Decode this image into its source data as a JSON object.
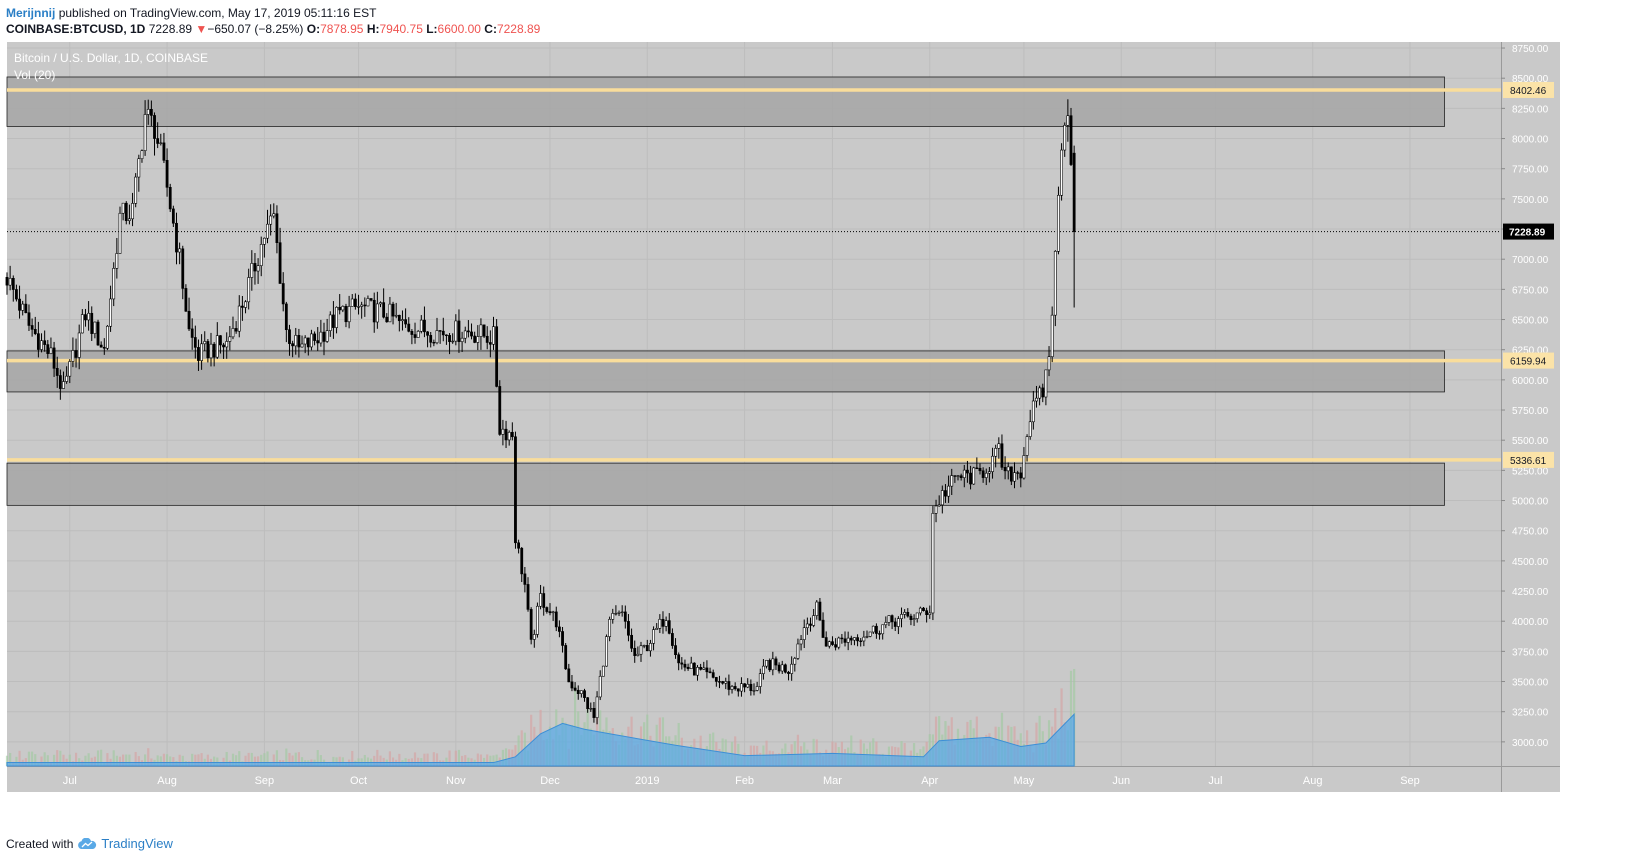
{
  "header": {
    "author": "Merijnnij",
    "published_text": "published on TradingView.com, May 17, 2019 05:11:16 EST",
    "symbol": "COINBASE:BTCUSD, 1D",
    "last": "7228.89",
    "change_arrow": "▼",
    "change": "−650.07 (−8.25%)",
    "o_label": "O:",
    "o_value": "7878.95",
    "h_label": "H:",
    "h_value": "7940.75",
    "l_label": "L:",
    "l_value": "6600.00",
    "c_label": "C:",
    "c_value": "7228.89"
  },
  "chart_legend": {
    "title": "Bitcoin / U.S. Dollar, 1D, COINBASE",
    "volume": "Vol (20)"
  },
  "footer": {
    "created_with": "Created with",
    "brand": "TradingView",
    "logo_icon": "tradingview-cloud-icon"
  },
  "colors": {
    "panel_bg": "#c9c9c9",
    "zone_fill": "#a6a6a6",
    "level_line": "#f9dd9b",
    "candle": "#000000",
    "volume_ma": "#5aa9e6"
  },
  "chart_data": {
    "type": "candlestick",
    "title": "Bitcoin / U.S. Dollar, 1D, COINBASE",
    "y_axis_ticks": [
      8750,
      8500,
      8250,
      8000,
      7750,
      7500,
      7250,
      7000,
      6750,
      6500,
      6250,
      6000,
      5750,
      5500,
      5250,
      5000,
      4750,
      4500,
      4250,
      4000,
      3750,
      3500,
      3250,
      3000
    ],
    "ylim": [
      2800,
      8800
    ],
    "x_axis_ticks": [
      "Jul",
      "Aug",
      "Sep",
      "Oct",
      "Nov",
      "Dec",
      "2019",
      "Feb",
      "Mar",
      "Apr",
      "May",
      "Jun",
      "Jul",
      "Aug",
      "Sep"
    ],
    "x_range": [
      "2018-06-11",
      "2019-09-30"
    ],
    "price_series": [
      [
        "2018-06-11",
        6850
      ],
      [
        "2018-06-18",
        6450
      ],
      [
        "2018-06-25",
        6200
      ],
      [
        "2018-06-29",
        5900
      ],
      [
        "2018-07-06",
        6550
      ],
      [
        "2018-07-12",
        6250
      ],
      [
        "2018-07-17",
        7350
      ],
      [
        "2018-07-21",
        7400
      ],
      [
        "2018-07-25",
        8200
      ],
      [
        "2018-07-28",
        8100
      ],
      [
        "2018-08-01",
        7600
      ],
      [
        "2018-08-05",
        7000
      ],
      [
        "2018-08-08",
        6400
      ],
      [
        "2018-08-11",
        6200
      ],
      [
        "2018-08-14",
        6250
      ],
      [
        "2018-08-20",
        6300
      ],
      [
        "2018-08-26",
        6700
      ],
      [
        "2018-09-01",
        7200
      ],
      [
        "2018-09-04",
        7350
      ],
      [
        "2018-09-08",
        6400
      ],
      [
        "2018-09-12",
        6250
      ],
      [
        "2018-09-18",
        6350
      ],
      [
        "2018-09-25",
        6550
      ],
      [
        "2018-10-01",
        6600
      ],
      [
        "2018-10-10",
        6550
      ],
      [
        "2018-10-15",
        6450
      ],
      [
        "2018-10-25",
        6400
      ],
      [
        "2018-11-05",
        6400
      ],
      [
        "2018-11-13",
        6350
      ],
      [
        "2018-11-15",
        5600
      ],
      [
        "2018-11-19",
        5550
      ],
      [
        "2018-11-20",
        4700
      ],
      [
        "2018-11-23",
        4300
      ],
      [
        "2018-11-25",
        3800
      ],
      [
        "2018-11-28",
        4200
      ],
      [
        "2018-12-03",
        4000
      ],
      [
        "2018-12-07",
        3500
      ],
      [
        "2018-12-11",
        3400
      ],
      [
        "2018-12-15",
        3200
      ],
      [
        "2018-12-20",
        4000
      ],
      [
        "2018-12-24",
        4050
      ],
      [
        "2018-12-28",
        3700
      ],
      [
        "2019-01-01",
        3800
      ],
      [
        "2019-01-07",
        4050
      ],
      [
        "2019-01-11",
        3650
      ],
      [
        "2019-01-20",
        3550
      ],
      [
        "2019-01-28",
        3450
      ],
      [
        "2019-02-05",
        3450
      ],
      [
        "2019-02-08",
        3650
      ],
      [
        "2019-02-15",
        3600
      ],
      [
        "2019-02-20",
        3950
      ],
      [
        "2019-02-24",
        4100
      ],
      [
        "2019-02-27",
        3800
      ],
      [
        "2019-03-05",
        3850
      ],
      [
        "2019-03-12",
        3900
      ],
      [
        "2019-03-20",
        4000
      ],
      [
        "2019-03-28",
        4050
      ],
      [
        "2019-04-01",
        4100
      ],
      [
        "2019-04-02",
        4900
      ],
      [
        "2019-04-05",
        5050
      ],
      [
        "2019-04-10",
        5200
      ],
      [
        "2019-04-16",
        5200
      ],
      [
        "2019-04-20",
        5300
      ],
      [
        "2019-04-23",
        5400
      ],
      [
        "2019-04-25",
        5200
      ],
      [
        "2019-04-30",
        5250
      ],
      [
        "2019-05-03",
        5700
      ],
      [
        "2019-05-07",
        5900
      ],
      [
        "2019-05-09",
        6200
      ],
      [
        "2019-05-11",
        7000
      ],
      [
        "2019-05-13",
        8000
      ],
      [
        "2019-05-14",
        8200
      ],
      [
        "2019-05-15",
        8200
      ],
      [
        "2019-05-16",
        7880
      ],
      [
        "2019-05-17",
        7228.89
      ]
    ],
    "volume_ma": [
      [
        "2018-06-11",
        3
      ],
      [
        "2018-11-13",
        3
      ],
      [
        "2018-11-20",
        8
      ],
      [
        "2018-11-28",
        28
      ],
      [
        "2018-12-05",
        37
      ],
      [
        "2018-12-12",
        32
      ],
      [
        "2018-12-20",
        28
      ],
      [
        "2019-01-10",
        18
      ],
      [
        "2019-02-01",
        9
      ],
      [
        "2019-03-01",
        11
      ],
      [
        "2019-03-30",
        8
      ],
      [
        "2019-04-04",
        22
      ],
      [
        "2019-04-20",
        25
      ],
      [
        "2019-04-30",
        17
      ],
      [
        "2019-05-08",
        20
      ],
      [
        "2019-05-17",
        45
      ]
    ],
    "zones": [
      {
        "low": 8100,
        "high": 8510
      },
      {
        "low": 5900,
        "high": 6240
      },
      {
        "low": 4960,
        "high": 5310
      }
    ],
    "level_lines": [
      {
        "price": 8402.46,
        "label": "8402.46"
      },
      {
        "price": 6159.94,
        "label": "6159.94"
      },
      {
        "price": 5336.61,
        "label": "5336.61"
      }
    ],
    "last_price": {
      "price": 7228.89,
      "label": "7228.89"
    }
  }
}
